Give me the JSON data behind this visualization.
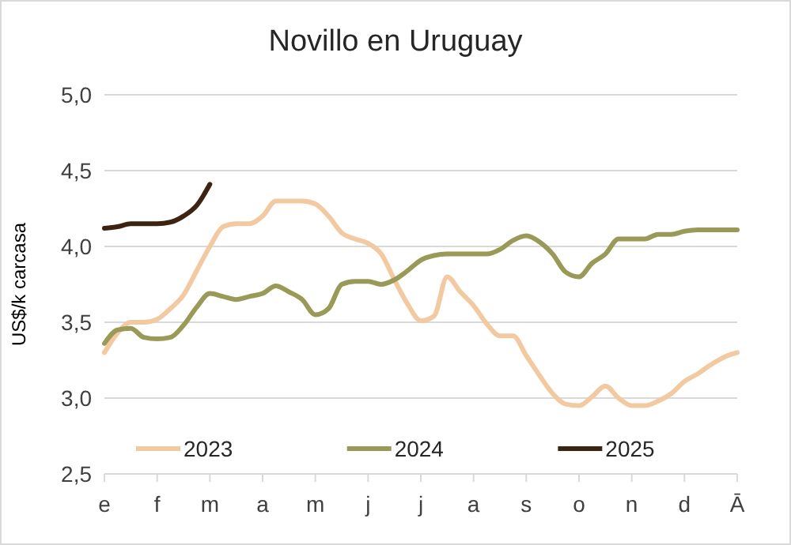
{
  "chart_data": {
    "type": "line",
    "title": "Novillo en Uruguay",
    "ylabel": "US$/k carcasa",
    "categories": [
      "e",
      null,
      null,
      null,
      "f",
      null,
      null,
      null,
      "m",
      null,
      null,
      null,
      "a",
      null,
      null,
      null,
      "m",
      null,
      null,
      null,
      "j",
      null,
      null,
      null,
      "j",
      null,
      null,
      null,
      "a",
      null,
      null,
      null,
      "s",
      null,
      null,
      null,
      "o",
      null,
      null,
      null,
      "n",
      null,
      null,
      null,
      "d",
      null,
      null,
      null,
      "Ā"
    ],
    "ylim": [
      2.5,
      5
    ],
    "yticks": [
      {
        "value": 2.5,
        "label": "2,5"
      },
      {
        "value": 3,
        "label": "3,0"
      },
      {
        "value": 3.5,
        "label": "3,5"
      },
      {
        "value": 4,
        "label": "4,0"
      },
      {
        "value": 4.5,
        "label": "4,5"
      },
      {
        "value": 5,
        "label": "5,0"
      }
    ],
    "grid": "y",
    "legend": "bottom",
    "marker": "none",
    "line_style": "solid",
    "series": [
      {
        "name": "2023",
        "color": "#f2c9a0",
        "values": [
          3.3,
          3.43,
          3.5,
          3.5,
          3.52,
          3.59,
          3.68,
          3.84,
          4.0,
          4.13,
          4.15,
          4.15,
          4.2,
          4.3,
          4.3,
          4.3,
          4.28,
          4.2,
          4.09,
          4.05,
          4.02,
          3.95,
          3.78,
          3.62,
          3.51,
          3.54,
          3.8,
          3.7,
          3.61,
          3.49,
          3.41,
          3.41,
          3.28,
          3.15,
          3.03,
          2.96,
          2.95,
          3.01,
          3.08,
          3.0,
          2.95,
          2.95,
          2.98,
          3.03,
          3.11,
          3.16,
          3.22,
          3.27,
          3.3
        ]
      },
      {
        "name": "2024",
        "color": "#9a9a58",
        "values": [
          3.36,
          3.45,
          3.46,
          3.4,
          3.39,
          3.4,
          3.48,
          3.6,
          3.69,
          3.67,
          3.65,
          3.67,
          3.69,
          3.74,
          3.7,
          3.65,
          3.55,
          3.59,
          3.75,
          3.77,
          3.77,
          3.75,
          3.78,
          3.84,
          3.91,
          3.94,
          3.95,
          3.95,
          3.95,
          3.95,
          3.98,
          4.04,
          4.07,
          4.03,
          3.95,
          3.83,
          3.8,
          3.89,
          3.95,
          4.05,
          4.05,
          4.05,
          4.08,
          4.08,
          4.1,
          4.11,
          4.11,
          4.11,
          4.11
        ]
      },
      {
        "name": "2025",
        "color": "#3d2412",
        "values": [
          4.12,
          4.13,
          4.15,
          4.15,
          4.15,
          4.16,
          4.2,
          4.27,
          4.41,
          null,
          null,
          null,
          null,
          null,
          null,
          null,
          null,
          null,
          null,
          null,
          null,
          null,
          null,
          null,
          null,
          null,
          null,
          null,
          null,
          null,
          null,
          null,
          null,
          null,
          null,
          null,
          null,
          null,
          null,
          null,
          null,
          null,
          null,
          null,
          null,
          null,
          null,
          null,
          null
        ]
      }
    ]
  }
}
